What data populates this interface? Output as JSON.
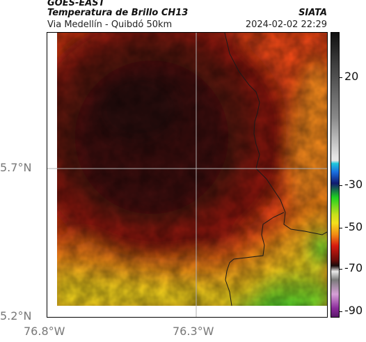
{
  "header": {
    "satellite": "GOES-EAST",
    "product": "Temperatura de Brillo CH13",
    "route": "Via Medellín - Quibdó 50km",
    "agency": "SIATA",
    "timestamp": "2024-02-02 22:29"
  },
  "axes": {
    "lat_labels": [
      "5.7°N",
      "5.2°N"
    ],
    "lon_labels": [
      "76.8°W",
      "76.3°W"
    ]
  },
  "colorbar": {
    "labels": [
      "20",
      "-30",
      "-50",
      "-70",
      "-90"
    ]
  },
  "colors": {
    "dark_core": "#2a0f0c",
    "red": "#c41a0d",
    "orange": "#f05a14",
    "yellow": "#f2d31c",
    "green": "#2fd02a"
  }
}
